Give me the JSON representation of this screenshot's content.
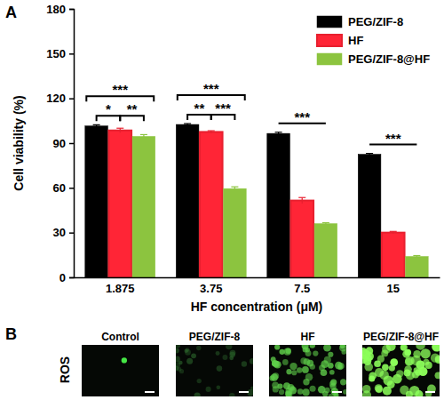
{
  "chart_data": {
    "type": "bar",
    "title": "A",
    "x_label": "HF concentration (μM)",
    "y_label": "Cell viability (%)",
    "categories": [
      "1.875",
      "3.75",
      "7.5",
      "15"
    ],
    "series": [
      {
        "name": "PEG/ZIF-8",
        "color": "#000000",
        "values": [
          101.5,
          102.5,
          96.5,
          82.5
        ],
        "errors": [
          0.8,
          0.6,
          0.8,
          0.6
        ]
      },
      {
        "name": "HF",
        "color": "#e8202f",
        "values": [
          98.5,
          97.5,
          51.5,
          30
        ],
        "errors": [
          1.5,
          0.8,
          2,
          0.8
        ]
      },
      {
        "name": "PEG/ZIF-8@HF",
        "color": "#8cc43f",
        "values": [
          94.5,
          59.5,
          36,
          14
        ],
        "errors": [
          1.2,
          1.2,
          0.6,
          0.6
        ]
      }
    ],
    "ylim": [
      0,
      180
    ],
    "yticks": [
      0,
      30,
      60,
      90,
      120,
      150,
      180
    ],
    "legend": "top-right",
    "annotations": [
      {
        "text": "***",
        "category": "1.875",
        "between": [
          "PEG/ZIF-8",
          "PEG/ZIF-8@HF"
        ]
      },
      {
        "text": "*",
        "category": "1.875",
        "between": [
          "PEG/ZIF-8",
          "HF"
        ]
      },
      {
        "text": "**",
        "category": "1.875",
        "between": [
          "HF",
          "PEG/ZIF-8@HF"
        ]
      },
      {
        "text": "***",
        "category": "3.75",
        "between": [
          "PEG/ZIF-8",
          "PEG/ZIF-8@HF"
        ]
      },
      {
        "text": "**",
        "category": "3.75",
        "between": [
          "PEG/ZIF-8",
          "HF"
        ]
      },
      {
        "text": "***",
        "category": "3.75",
        "between": [
          "HF",
          "PEG/ZIF-8@HF"
        ]
      },
      {
        "text": "***",
        "category": "7.5",
        "between": [
          "PEG/ZIF-8",
          "PEG/ZIF-8@HF"
        ]
      },
      {
        "text": "***",
        "category": "15",
        "between": [
          "PEG/ZIF-8",
          "PEG/ZIF-8@HF"
        ]
      }
    ]
  },
  "image_panel": {
    "label": "B",
    "row_label": "ROS",
    "columns": [
      "Control",
      "PEG/ZIF-8",
      "HF",
      "PEG/ZIF-8@HF"
    ]
  }
}
